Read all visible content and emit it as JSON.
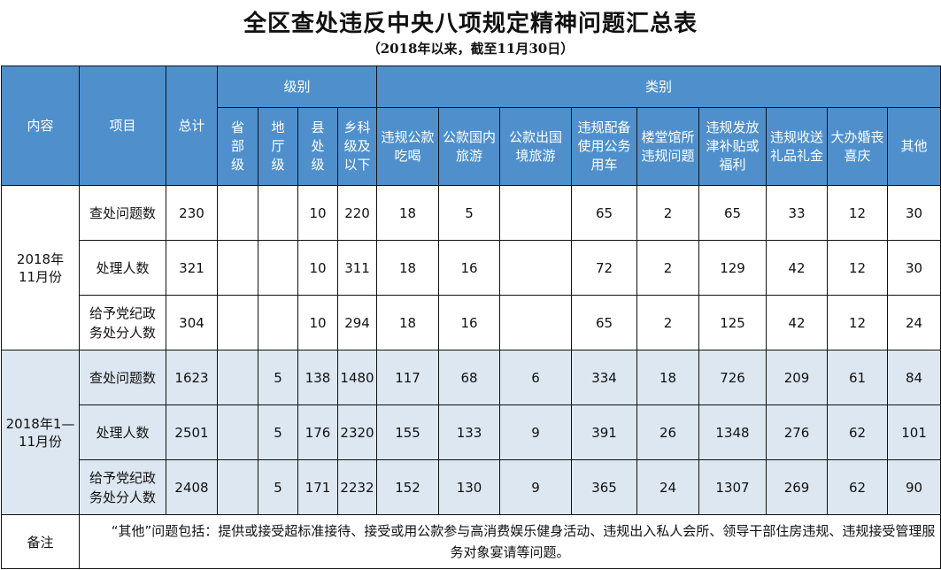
{
  "document": {
    "title": "全区查处违反中央八项规定精神问题汇总表",
    "subtitle": "（2018年以来，截至11月30日）"
  },
  "header": {
    "content": "内容",
    "item": "项目",
    "total": "总计",
    "level_group": "级别",
    "category_group": "类别",
    "levels": [
      "省部级",
      "地厅级",
      "县处级",
      "乡科级及以下"
    ],
    "categories": [
      "违规公款吃喝",
      "公款国内旅游",
      "公款出国境旅游",
      "违规配备使用公务用车",
      "楼堂馆所违规问题",
      "违规发放津补贴或福利",
      "违规收送礼品礼金",
      "大办婚丧喜庆",
      "其他"
    ]
  },
  "groups": [
    {
      "label": "2018年11月份",
      "rows": [
        {
          "item": "查处问题数",
          "total": "230",
          "levels": [
            "",
            "",
            "10",
            "220"
          ],
          "categories": [
            "18",
            "5",
            "",
            "65",
            "2",
            "65",
            "33",
            "12",
            "30"
          ]
        },
        {
          "item": "处理人数",
          "total": "321",
          "levels": [
            "",
            "",
            "10",
            "311"
          ],
          "categories": [
            "18",
            "16",
            "",
            "72",
            "2",
            "129",
            "42",
            "12",
            "30"
          ]
        },
        {
          "item": "给予党纪政务处分人数",
          "total": "304",
          "levels": [
            "",
            "",
            "10",
            "294"
          ],
          "categories": [
            "18",
            "16",
            "",
            "65",
            "2",
            "125",
            "42",
            "12",
            "24"
          ]
        }
      ]
    },
    {
      "label": "2018年1—11月份",
      "rows": [
        {
          "item": "查处问题数",
          "total": "1623",
          "levels": [
            "",
            "5",
            "138",
            "1480"
          ],
          "categories": [
            "117",
            "68",
            "6",
            "334",
            "18",
            "726",
            "209",
            "61",
            "84"
          ]
        },
        {
          "item": "处理人数",
          "total": "2501",
          "levels": [
            "",
            "5",
            "176",
            "2320"
          ],
          "categories": [
            "155",
            "133",
            "9",
            "391",
            "26",
            "1348",
            "276",
            "62",
            "101"
          ]
        },
        {
          "item": "给予党纪政务处分人数",
          "total": "2408",
          "levels": [
            "",
            "5",
            "171",
            "2232"
          ],
          "categories": [
            "152",
            "130",
            "9",
            "365",
            "24",
            "1307",
            "269",
            "62",
            "90"
          ]
        }
      ]
    }
  ],
  "note": {
    "label": "备注",
    "text": "“其他”问题包括：提供或接受超标准接待、接受或用公款参与高消费娱乐健身活动、违规出入私人会所、领导干部住房违规、违规接受管理服务对象宴请等问题。"
  },
  "colors": {
    "header_bg": "#4f90cc",
    "header_text": "#ffffff",
    "band_alt": "#dde7f1",
    "border": "#111111"
  }
}
